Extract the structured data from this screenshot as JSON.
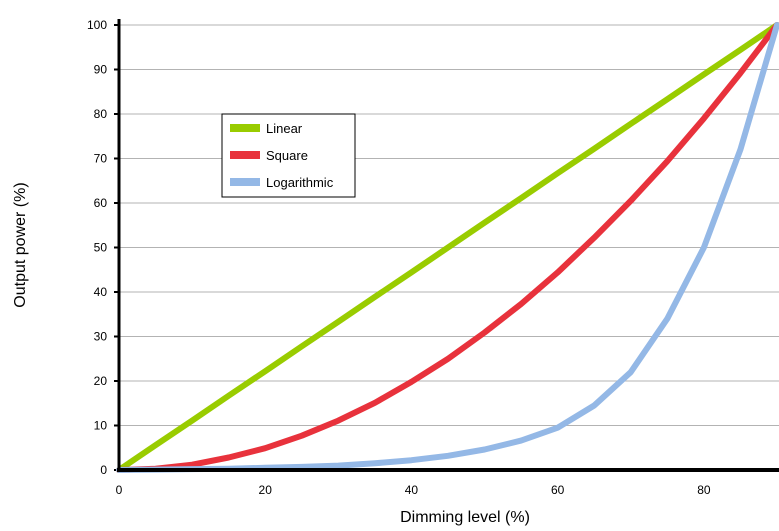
{
  "chart_data": {
    "type": "line",
    "title": "",
    "xlabel": "Dimming level (%)",
    "ylabel": "Output power (%)",
    "xlim": [
      0,
      90
    ],
    "ylim": [
      0,
      100
    ],
    "x_ticks": [
      "0",
      "20",
      "40",
      "60",
      "80"
    ],
    "y_ticks": [
      "0",
      "10",
      "20",
      "30",
      "40",
      "50",
      "60",
      "70",
      "80",
      "90",
      "100"
    ],
    "grid": "horizontal",
    "legend_position": "upper-left",
    "x": [
      0,
      5,
      10,
      15,
      20,
      25,
      30,
      35,
      40,
      45,
      50,
      55,
      60,
      65,
      70,
      75,
      80,
      85,
      90
    ],
    "series": [
      {
        "name": "Linear",
        "color": "#99cc00",
        "values": [
          0,
          5.6,
          11.1,
          16.7,
          22.2,
          27.8,
          33.3,
          38.9,
          44.4,
          50,
          55.6,
          61.1,
          66.7,
          72.2,
          77.8,
          83.3,
          88.9,
          94.4,
          100
        ]
      },
      {
        "name": "Square",
        "color": "#e8323c",
        "values": [
          0,
          0.3,
          1.2,
          2.8,
          4.9,
          7.7,
          11.1,
          15.1,
          19.8,
          25,
          30.9,
          37.3,
          44.4,
          52.2,
          60.5,
          69.4,
          79,
          89.2,
          100
        ]
      },
      {
        "name": "Logarithmic",
        "color": "#94b8e6",
        "values": [
          0,
          0.1,
          0.2,
          0.3,
          0.5,
          0.7,
          1.0,
          1.5,
          2.2,
          3.2,
          4.6,
          6.6,
          9.5,
          14.5,
          22,
          34,
          50,
          72,
          100
        ]
      }
    ]
  }
}
